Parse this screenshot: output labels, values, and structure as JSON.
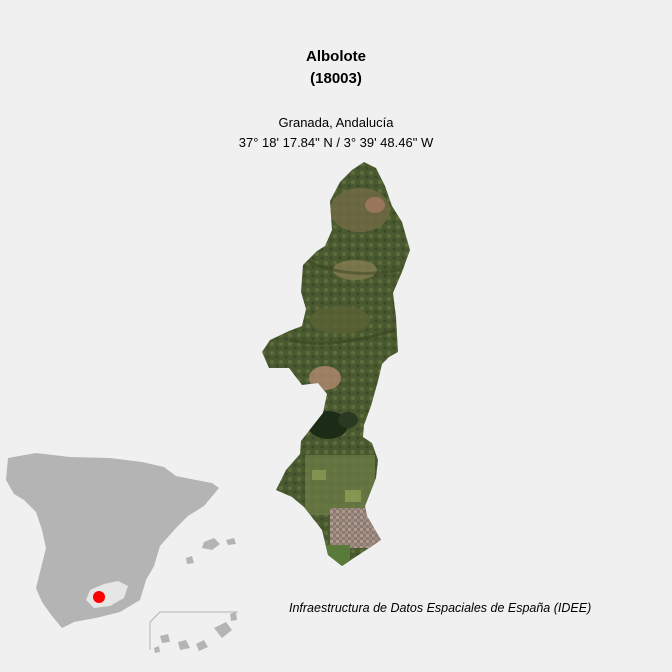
{
  "header": {
    "municipality": "Albolote",
    "code": "(18003)",
    "region": "Granada, Andalucía",
    "coordinates": "37° 18' 17.84\" N / 3° 39' 48.46\" W"
  },
  "footer": {
    "source": "Infraestructura de Datos Espaciales de España (IDEE)"
  },
  "colors": {
    "background": "#f0f0f0",
    "spain_fill": "#b4b4b4",
    "province_fill": "#e6e6e6",
    "marker": "#ff0000"
  },
  "map": {
    "imagery": "satellite",
    "locator": "Spain with Granada province highlighted and red location marker",
    "icon": "location-marker-icon"
  }
}
